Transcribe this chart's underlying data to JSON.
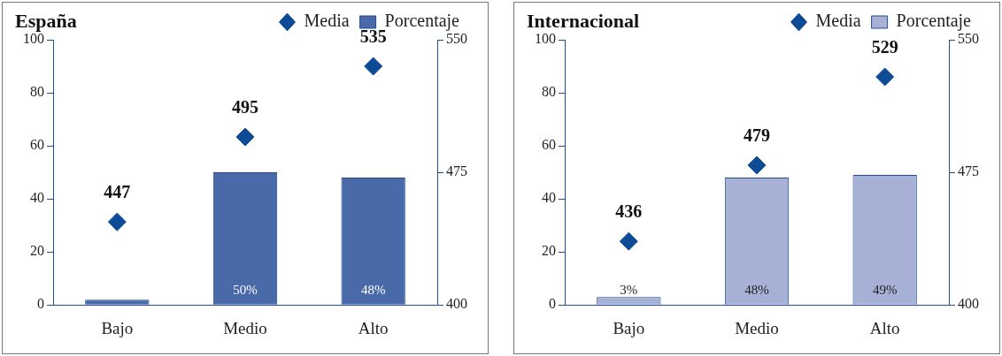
{
  "chart_data": [
    {
      "type": "bar",
      "title": "España",
      "categories": [
        "Bajo",
        "Medio",
        "Alto"
      ],
      "ylim": [
        0,
        100
      ],
      "yticks": [
        0,
        20,
        40,
        60,
        80,
        100
      ],
      "y2lim": [
        400,
        550
      ],
      "y2ticks": [
        400,
        475,
        550
      ],
      "legend": "top right",
      "grid": false,
      "series": [
        {
          "name": "Porcentaje",
          "color": "#4a69a8",
          "values": [
            2,
            50,
            48
          ],
          "value_labels": [
            null,
            "50%",
            "48%"
          ]
        },
        {
          "name": "Media",
          "type": "scatter",
          "axis": "y2",
          "marker": "diamond",
          "color": "#0d4b96",
          "values": [
            447,
            495,
            535
          ],
          "value_labels": [
            "447",
            "495",
            "535"
          ]
        }
      ]
    },
    {
      "type": "bar",
      "title": "Internacional",
      "categories": [
        "Bajo",
        "Medio",
        "Alto"
      ],
      "ylim": [
        0,
        100
      ],
      "yticks": [
        0,
        20,
        40,
        60,
        80,
        100
      ],
      "y2lim": [
        400,
        550
      ],
      "y2ticks": [
        400,
        475,
        550
      ],
      "legend": "top right",
      "grid": false,
      "series": [
        {
          "name": "Porcentaje",
          "color": "#a7b1d6",
          "values": [
            3,
            48,
            49
          ],
          "value_labels": [
            "3%",
            "48%",
            "49%"
          ]
        },
        {
          "name": "Media",
          "type": "scatter",
          "axis": "y2",
          "marker": "diamond",
          "color": "#0d4b96",
          "values": [
            436,
            479,
            529
          ],
          "value_labels": [
            "436",
            "479",
            "529"
          ]
        }
      ]
    }
  ]
}
